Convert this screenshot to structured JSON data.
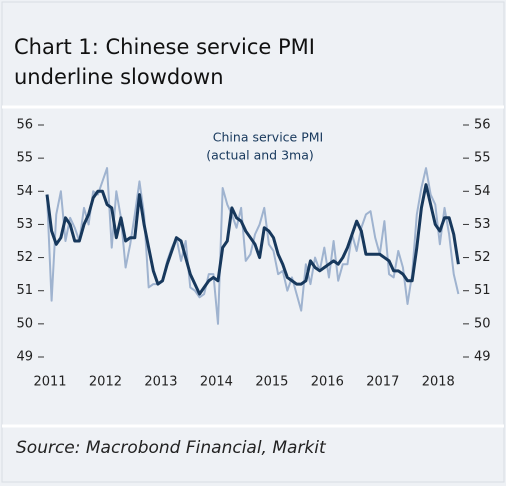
{
  "chart_data": {
    "type": "line",
    "title": [
      "Chart 1: Chinese service PMI",
      "underline slowdown"
    ],
    "annotation": [
      "China service PMI",
      "(actual and 3ma)"
    ],
    "source": "Source: Macrobond Financial, Markit",
    "x": [
      2011,
      2011.083,
      2011.167,
      2011.25,
      2011.333,
      2011.417,
      2011.5,
      2011.583,
      2011.667,
      2011.75,
      2011.833,
      2011.917,
      2012,
      2012.083,
      2012.167,
      2012.25,
      2012.333,
      2012.417,
      2012.5,
      2012.583,
      2012.667,
      2012.75,
      2012.833,
      2012.917,
      2013,
      2013.083,
      2013.167,
      2013.25,
      2013.333,
      2013.417,
      2013.5,
      2013.583,
      2013.667,
      2013.75,
      2013.833,
      2013.917,
      2014,
      2014.083,
      2014.167,
      2014.25,
      2014.333,
      2014.417,
      2014.5,
      2014.583,
      2014.667,
      2014.75,
      2014.833,
      2014.917,
      2015,
      2015.083,
      2015.167,
      2015.25,
      2015.333,
      2015.417,
      2015.5,
      2015.583,
      2015.667,
      2015.75,
      2015.833,
      2015.917,
      2016,
      2016.083,
      2016.167,
      2016.25,
      2016.333,
      2016.417,
      2016.5,
      2016.583,
      2016.667,
      2016.75,
      2016.833,
      2016.917,
      2017,
      2017.083,
      2017.167,
      2017.25,
      2017.333,
      2017.417,
      2017.5,
      2017.583,
      2017.667,
      2017.75,
      2017.833,
      2017.917,
      2018,
      2018.083,
      2018.167,
      2018.25,
      2018.333,
      2018.417
    ],
    "series": [
      {
        "color": "#9fb3cf",
        "width": 2,
        "values": [
          53.9,
          50.7,
          53.3,
          54.0,
          52.5,
          53.2,
          52.9,
          52.5,
          53.5,
          53.0,
          54.0,
          53.9,
          54.3,
          54.7,
          52.3,
          54.0,
          53.2,
          51.7,
          52.4,
          53.3,
          54.3,
          53.3,
          51.1,
          51.2,
          51.2,
          51.3,
          51.9,
          52.3,
          52.6,
          51.9,
          52.5,
          51.1,
          51.0,
          50.8,
          50.9,
          51.5,
          51.5,
          50.0,
          54.1,
          53.6,
          53.3,
          52.9,
          53.5,
          51.9,
          52.1,
          52.7,
          53.0,
          53.5,
          52.4,
          52.2,
          51.5,
          51.6,
          51.0,
          51.4,
          50.9,
          50.4,
          51.8,
          51.2,
          52.0,
          51.6,
          52.3,
          51.4,
          52.5,
          51.3,
          51.8,
          51.8,
          52.7,
          52.2,
          52.9,
          53.3,
          53.4,
          52.6,
          52.1,
          53.1,
          51.5,
          51.4,
          52.2,
          51.7,
          50.6,
          51.5,
          53.3,
          54.1,
          54.7,
          53.9,
          53.6,
          52.4,
          53.5,
          52.7,
          51.5,
          50.9
        ]
      },
      {
        "color": "#17385c",
        "width": 3,
        "values": [
          53.9,
          52.8,
          52.4,
          52.6,
          53.2,
          53.0,
          52.5,
          52.5,
          53.0,
          53.3,
          53.8,
          54.0,
          54.0,
          53.6,
          53.5,
          52.6,
          53.2,
          52.5,
          52.6,
          52.6,
          53.9,
          53.0,
          52.3,
          51.6,
          51.2,
          51.3,
          51.8,
          52.2,
          52.6,
          52.5,
          52.0,
          51.5,
          51.2,
          50.9,
          51.1,
          51.3,
          51.4,
          51.3,
          52.3,
          52.5,
          53.5,
          53.2,
          53.1,
          52.8,
          52.6,
          52.4,
          52.0,
          52.9,
          52.8,
          52.6,
          52.1,
          51.8,
          51.4,
          51.3,
          51.2,
          51.2,
          51.3,
          51.9,
          51.7,
          51.6,
          51.7,
          51.8,
          51.9,
          51.8,
          52.0,
          52.3,
          52.7,
          53.1,
          52.8,
          52.1,
          52.1,
          52.1,
          52.1,
          52.0,
          51.9,
          51.6,
          51.6,
          51.5,
          51.3,
          51.3,
          52.3,
          53.5,
          54.2,
          53.6,
          53.0,
          52.8,
          53.2,
          53.2,
          52.7,
          51.8
        ]
      }
    ],
    "xlim": [
      2011,
      2018.5
    ],
    "xticks": [
      2011,
      2012,
      2013,
      2014,
      2015,
      2016,
      2017,
      2018
    ],
    "ylim": [
      49,
      56
    ],
    "yticks": [
      49,
      50,
      51,
      52,
      53,
      54,
      55,
      56
    ],
    "y2lim": [
      49,
      56
    ],
    "y2ticks": [
      49,
      50,
      51,
      52,
      53,
      54,
      55,
      56
    ]
  }
}
